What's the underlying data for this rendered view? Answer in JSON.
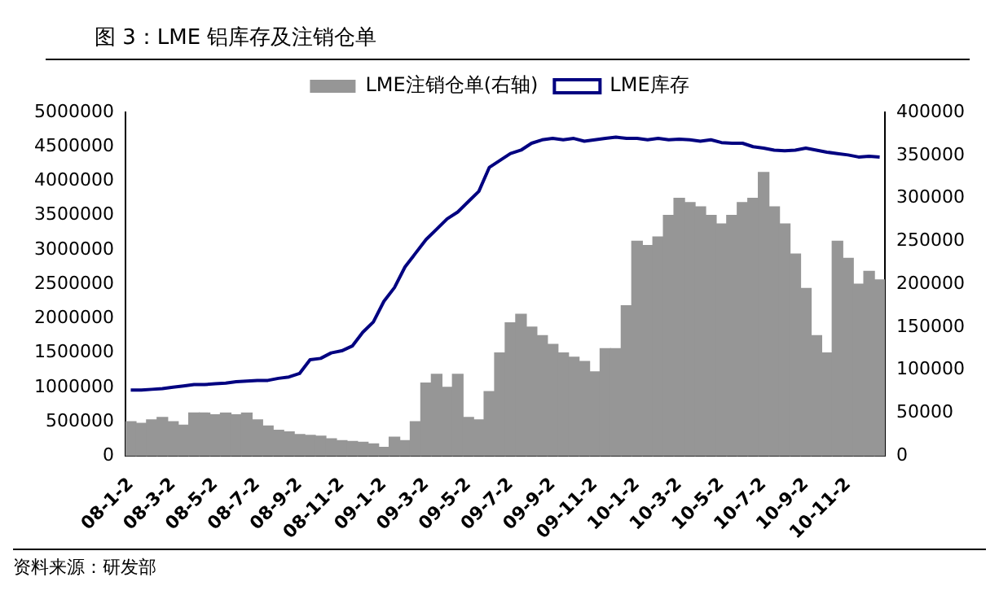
{
  "chart_data": {
    "type": "bar",
    "title": "图 3：LME 铝库存及注销仓单",
    "categories": [
      "08-1-2",
      null,
      null,
      null,
      "08-3-2",
      null,
      null,
      null,
      "08-5-2",
      null,
      null,
      null,
      "08-7-2",
      null,
      null,
      null,
      "08-9-2",
      null,
      null,
      null,
      "08-11-2",
      null,
      null,
      null,
      "09-1-2",
      null,
      null,
      null,
      "09-3-2",
      null,
      null,
      null,
      "09-5-2",
      null,
      null,
      null,
      "09-7-2",
      null,
      null,
      null,
      "09-9-2",
      null,
      null,
      null,
      "09-11-2",
      null,
      null,
      null,
      "10-1-2",
      null,
      null,
      null,
      "10-3-2",
      null,
      null,
      null,
      "10-5-2",
      null,
      null,
      null,
      "10-7-2",
      null,
      null,
      null,
      "10-9-2",
      null,
      null,
      null,
      "10-11-2",
      null,
      null,
      null
    ],
    "series": [
      {
        "name": "LME注销仓单(右轴)",
        "axis": "y2",
        "color": "#969696",
        "values": [
          40000,
          38000,
          42000,
          45000,
          40000,
          36000,
          50000,
          50000,
          48000,
          50000,
          48000,
          50000,
          42000,
          35000,
          30000,
          28000,
          25000,
          24000,
          23000,
          20000,
          18000,
          17000,
          16000,
          14000,
          10000,
          22000,
          18000,
          40000,
          85000,
          95000,
          80000,
          95000,
          45000,
          42000,
          75000,
          120000,
          155000,
          165000,
          150000,
          140000,
          130000,
          120000,
          115000,
          110000,
          98000,
          125000,
          125000,
          175000,
          250000,
          245000,
          255000,
          280000,
          300000,
          295000,
          290000,
          280000,
          270000,
          280000,
          295000,
          300000,
          330000,
          290000,
          270000,
          235000,
          195000,
          140000,
          120000,
          250000,
          230000,
          200000,
          215000,
          205000
        ]
      },
      {
        "name": "LME库存",
        "type": "line",
        "color": "#000080",
        "values": [
          960000,
          960000,
          970000,
          980000,
          1000000,
          1020000,
          1040000,
          1040000,
          1050000,
          1060000,
          1080000,
          1090000,
          1100000,
          1100000,
          1130000,
          1150000,
          1200000,
          1400000,
          1420000,
          1500000,
          1530000,
          1600000,
          1800000,
          1950000,
          2250000,
          2450000,
          2750000,
          2950000,
          3150000,
          3300000,
          3450000,
          3550000,
          3700000,
          3850000,
          4200000,
          4300000,
          4400000,
          4450000,
          4550000,
          4600000,
          4620000,
          4600000,
          4620000,
          4580000,
          4600000,
          4620000,
          4640000,
          4620000,
          4620000,
          4600000,
          4620000,
          4600000,
          4610000,
          4600000,
          4580000,
          4600000,
          4560000,
          4550000,
          4550000,
          4500000,
          4480000,
          4450000,
          4440000,
          4450000,
          4480000,
          4450000,
          4420000,
          4400000,
          4380000,
          4350000,
          4360000,
          4350000
        ]
      }
    ],
    "ylim": [
      0,
      5000000
    ],
    "yticks": [
      0,
      500000,
      1000000,
      1500000,
      2000000,
      2500000,
      3000000,
      3500000,
      4000000,
      4500000,
      5000000
    ],
    "y2lim": [
      0,
      400000
    ],
    "y2ticks": [
      0,
      50000,
      100000,
      150000,
      200000,
      250000,
      300000,
      350000,
      400000
    ],
    "grid": false,
    "legend": "top",
    "annotations": [
      "资料来源：研发部"
    ]
  }
}
